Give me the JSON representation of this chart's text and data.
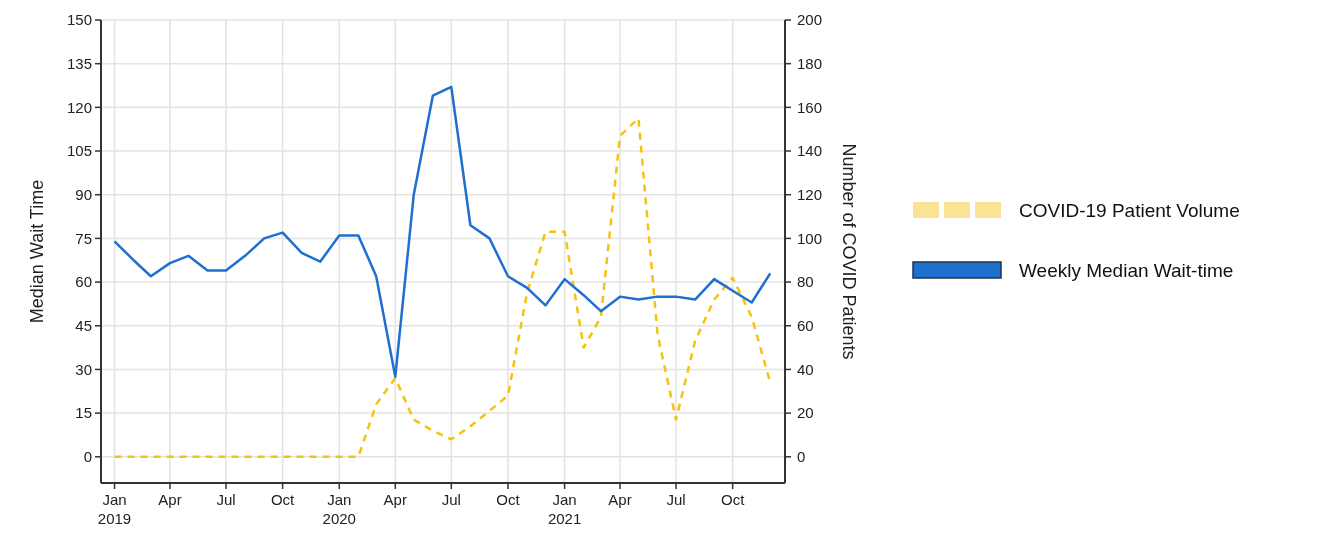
{
  "chart_data": {
    "type": "line",
    "ylabel": "Median Wait Time",
    "y2label": "Number of COVID Patients",
    "x": [
      "2019-01",
      "2019-02",
      "2019-03",
      "2019-04",
      "2019-05",
      "2019-06",
      "2019-07",
      "2019-08",
      "2019-09",
      "2019-10",
      "2019-11",
      "2019-12",
      "2020-01",
      "2020-02",
      "2020-03",
      "2020-04",
      "2020-05",
      "2020-06",
      "2020-07",
      "2020-08",
      "2020-09",
      "2020-10",
      "2020-11",
      "2020-12",
      "2021-01",
      "2021-02",
      "2021-03",
      "2021-04",
      "2021-05",
      "2021-06",
      "2021-07",
      "2021-08",
      "2021-09",
      "2021-10",
      "2021-11",
      "2021-12"
    ],
    "xlim": [
      "2018-12-10",
      "2021-12-25"
    ],
    "xticks": [
      {
        "value": "2019-01",
        "label": "Jan\n2019"
      },
      {
        "value": "2019-04",
        "label": "Apr"
      },
      {
        "value": "2019-07",
        "label": "Jul"
      },
      {
        "value": "2019-10",
        "label": "Oct"
      },
      {
        "value": "2020-01",
        "label": "Jan\n2020"
      },
      {
        "value": "2020-04",
        "label": "Apr"
      },
      {
        "value": "2020-07",
        "label": "Jul"
      },
      {
        "value": "2020-10",
        "label": "Oct"
      },
      {
        "value": "2021-01",
        "label": "Jan\n2021"
      },
      {
        "value": "2021-04",
        "label": "Apr"
      },
      {
        "value": "2021-07",
        "label": "Jul"
      },
      {
        "value": "2021-10",
        "label": "Oct"
      }
    ],
    "ylim": [
      -9,
      150
    ],
    "yticks": [
      0,
      15,
      30,
      45,
      60,
      75,
      90,
      105,
      120,
      135,
      150
    ],
    "y2lim": [
      -12,
      200
    ],
    "y2ticks": [
      0,
      20,
      40,
      60,
      80,
      100,
      120,
      140,
      160,
      180,
      200
    ],
    "grid": true,
    "legend": "right",
    "series": [
      {
        "name": "COVID-19 Patient Volume",
        "color": "#f5c211",
        "axis": "y2",
        "line_style": "dashed",
        "values": [
          0,
          0,
          0,
          0,
          0,
          0,
          0,
          0,
          0,
          0,
          0,
          0,
          0,
          0,
          24,
          36,
          17,
          12,
          8,
          14,
          21,
          28,
          75,
          103,
          103,
          50,
          64,
          147,
          155,
          56,
          17,
          53,
          72,
          82,
          64,
          34
        ]
      },
      {
        "name": "Weekly Median Wait-time",
        "color": "#1f6fd1",
        "line_style": "solid",
        "values": [
          74,
          67.5,
          62,
          66.5,
          69,
          64,
          64,
          69,
          75,
          77,
          70,
          67,
          76,
          76,
          62,
          27.5,
          90,
          124,
          127,
          79.5,
          75,
          62,
          58,
          52,
          61,
          55.5,
          50,
          55,
          54,
          55,
          55,
          54,
          61,
          57,
          53,
          63
        ]
      }
    ]
  }
}
